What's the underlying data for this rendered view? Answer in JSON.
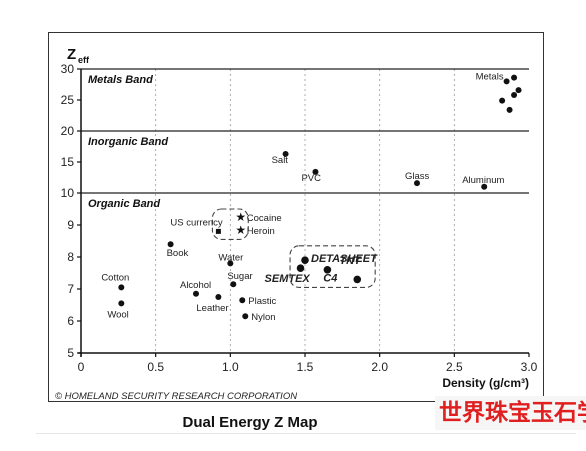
{
  "caption": "Dual Energy Z Map",
  "watermark": "世界珠宝玉石学院",
  "chart_data": {
    "type": "scatter",
    "title": "",
    "xlabel": "Density (g/cm³)",
    "ylabel": "Zeff",
    "ylabel_main": "Z",
    "ylabel_sub": "eff",
    "xlim": [
      0,
      3.0
    ],
    "ylim": [
      5,
      30
    ],
    "xticks": [
      "0",
      "0.5",
      "1.0",
      "1.5",
      "2.0",
      "2.5",
      "3.0"
    ],
    "yticks": [
      "5",
      "6",
      "7",
      "8",
      "9",
      "10",
      "15",
      "20",
      "25",
      "30"
    ],
    "credit": "© HOMELAND SECURITY RESEARCH CORPORATION",
    "bands": [
      {
        "label": "Metals Band",
        "y_from": 20,
        "y_to": 30
      },
      {
        "label": "Inorganic Band",
        "y_from": 10,
        "y_to": 20
      },
      {
        "label": "Organic Band",
        "y_from": 5,
        "y_to": 10
      }
    ],
    "points": [
      {
        "label": "Metals",
        "x": 2.85,
        "y": 28.0
      },
      {
        "label": "",
        "x": 2.9,
        "y": 28.6
      },
      {
        "label": "",
        "x": 2.93,
        "y": 26.6
      },
      {
        "label": "",
        "x": 2.9,
        "y": 25.8
      },
      {
        "label": "",
        "x": 2.82,
        "y": 24.9
      },
      {
        "label": "",
        "x": 2.87,
        "y": 23.4
      },
      {
        "label": "Salt",
        "x": 1.37,
        "y": 16.3
      },
      {
        "label": "PVC",
        "x": 1.57,
        "y": 13.4
      },
      {
        "label": "Glass",
        "x": 2.25,
        "y": 11.6
      },
      {
        "label": "Aluminum",
        "x": 2.7,
        "y": 11.0
      },
      {
        "label": "Cocaine",
        "x": 1.07,
        "y": 9.25,
        "marker": "star"
      },
      {
        "label": "Heroin",
        "x": 1.07,
        "y": 8.85,
        "marker": "star"
      },
      {
        "label": "US currency",
        "x": 0.92,
        "y": 8.8,
        "marker": "square"
      },
      {
        "label": "Book",
        "x": 0.6,
        "y": 8.4
      },
      {
        "label": "Water",
        "x": 1.0,
        "y": 7.8
      },
      {
        "label": "Sugar",
        "x": 1.02,
        "y": 7.15
      },
      {
        "label": "Cotton",
        "x": 0.27,
        "y": 7.05
      },
      {
        "label": "Alcohol",
        "x": 0.77,
        "y": 6.85
      },
      {
        "label": "Leather",
        "x": 0.92,
        "y": 6.75
      },
      {
        "label": "Plastic",
        "x": 1.08,
        "y": 6.65
      },
      {
        "label": "Wool",
        "x": 0.27,
        "y": 6.55
      },
      {
        "label": "Nylon",
        "x": 1.1,
        "y": 6.15
      },
      {
        "label": "DETASHEET",
        "x": 1.5,
        "y": 7.9,
        "group": "explosives"
      },
      {
        "label": "TNT",
        "x": 1.65,
        "y": 7.6,
        "group": "explosives"
      },
      {
        "label": "SEMTEX",
        "x": 1.47,
        "y": 7.65,
        "group": "explosives"
      },
      {
        "label": "C4",
        "x": 1.85,
        "y": 7.3,
        "group": "explosives"
      }
    ],
    "groups": [
      {
        "name": "narcotics-box",
        "x_from": 0.88,
        "x_to": 1.12,
        "y_from": 8.55,
        "y_to": 9.5
      },
      {
        "name": "explosives-box",
        "x_from": 1.4,
        "x_to": 1.97,
        "y_from": 7.05,
        "y_to": 8.35
      }
    ],
    "colors": {
      "points": "#111111",
      "rules": "#222222",
      "grid": "#999999",
      "explosive_box": "#444444"
    }
  }
}
